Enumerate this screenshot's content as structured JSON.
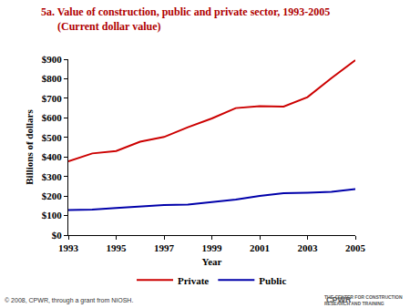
{
  "chart_data": {
    "type": "line",
    "title": "5a. Value of construction, public and private sector, 1993-2005",
    "subtitle": "(Current dollar value)",
    "x_label": "Year",
    "y_label": "Billions of dollars",
    "x": [
      1993,
      1994,
      1995,
      1996,
      1997,
      1998,
      1999,
      2000,
      2001,
      2002,
      2003,
      2004,
      2005
    ],
    "series": [
      {
        "name": "Private",
        "color": "#cc0000",
        "values": [
          378,
          418,
          430,
          478,
          502,
          552,
          597,
          650,
          660,
          658,
          706,
          803,
          895
        ]
      },
      {
        "name": "Public",
        "color": "#0000aa",
        "values": [
          128,
          130,
          139,
          147,
          154,
          156,
          169,
          182,
          201,
          214,
          217,
          222,
          235
        ]
      }
    ],
    "xlim": [
      1993,
      2005
    ],
    "xticks": [
      1993,
      1995,
      1997,
      1999,
      2001,
      2003,
      2005
    ],
    "ylim": [
      0,
      900
    ],
    "yticks": [
      {
        "value": 0,
        "label": "$0"
      },
      {
        "value": 100,
        "label": "$100"
      },
      {
        "value": 200,
        "label": "$200"
      },
      {
        "value": 300,
        "label": "$300"
      },
      {
        "value": 400,
        "label": "$400"
      },
      {
        "value": 500,
        "label": "$500"
      },
      {
        "value": 600,
        "label": "$600"
      },
      {
        "value": 700,
        "label": "$700"
      },
      {
        "value": 800,
        "label": "$800"
      },
      {
        "value": 900,
        "label": "$900"
      }
    ],
    "grid": false,
    "legend": "bottom",
    "annotations": [
      "© 2008, CPWR, through a grant from NIOSH.",
      "CPWR",
      "THE CENTER FOR CONSTRUCTION",
      "RESEARCH AND TRAINING"
    ]
  }
}
